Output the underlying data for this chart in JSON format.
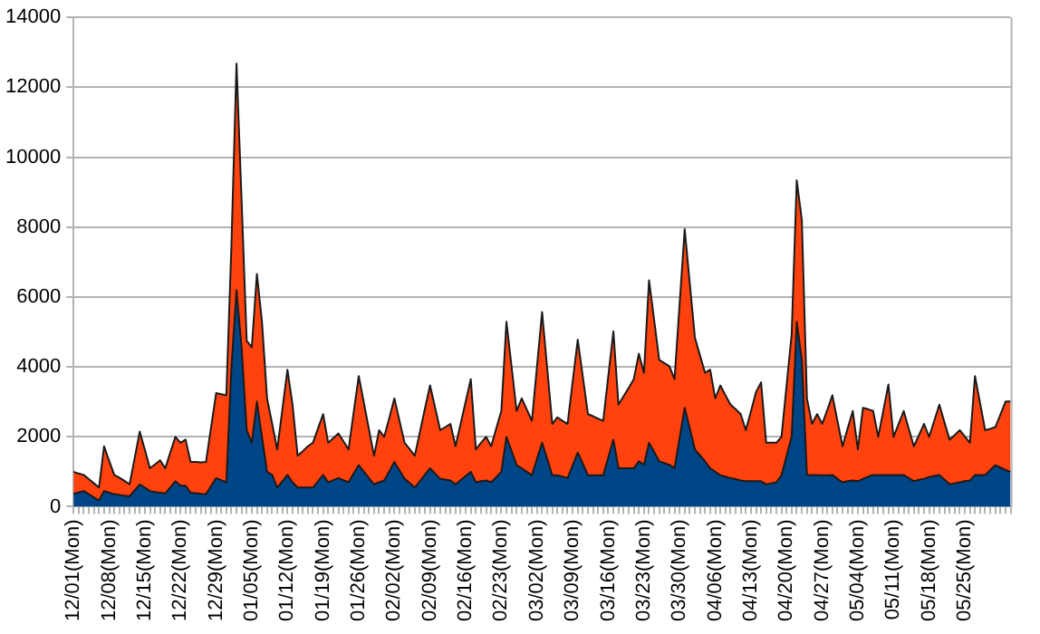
{
  "chart_data": {
    "type": "area",
    "stacked": true,
    "grid": "y",
    "categories": [
      "12/01(Mon)",
      null,
      null,
      null,
      null,
      null,
      null,
      "12/08(Mon)",
      null,
      null,
      null,
      null,
      null,
      null,
      "12/15(Mon)",
      null,
      null,
      null,
      null,
      null,
      null,
      "12/22(Mon)",
      null,
      null,
      null,
      null,
      null,
      null,
      "12/29(Mon)",
      null,
      null,
      null,
      null,
      null,
      null,
      "01/05(Mon)",
      null,
      null,
      null,
      null,
      null,
      null,
      "01/12(Mon)",
      null,
      null,
      null,
      null,
      null,
      null,
      "01/19(Mon)",
      null,
      null,
      null,
      null,
      null,
      null,
      "01/26(Mon)",
      null,
      null,
      null,
      null,
      null,
      null,
      "02/02(Mon)",
      null,
      null,
      null,
      null,
      null,
      null,
      "02/09(Mon)",
      null,
      null,
      null,
      null,
      null,
      null,
      "02/16(Mon)",
      null,
      null,
      null,
      null,
      null,
      null,
      "02/23(Mon)",
      null,
      null,
      null,
      null,
      null,
      null,
      "03/02(Mon)",
      null,
      null,
      null,
      null,
      null,
      null,
      "03/09(Mon)",
      null,
      null,
      null,
      null,
      null,
      null,
      "03/16(Mon)",
      null,
      null,
      null,
      null,
      null,
      null,
      "03/23(Mon)",
      null,
      null,
      null,
      null,
      null,
      null,
      "03/30(Mon)",
      null,
      null,
      null,
      null,
      null,
      null,
      "04/06(Mon)",
      null,
      null,
      null,
      null,
      null,
      null,
      "04/13(Mon)",
      null,
      null,
      null,
      null,
      null,
      null,
      "04/20(Mon)",
      null,
      null,
      null,
      null,
      null,
      null,
      "04/27(Mon)",
      null,
      null,
      null,
      null,
      null,
      null,
      "05/04(Mon)",
      null,
      null,
      null,
      null,
      null,
      null,
      "05/11(Mon)",
      null,
      null,
      null,
      null,
      null,
      null,
      "05/18(Mon)",
      null,
      null,
      null,
      null,
      null,
      null,
      "05/25(Mon)",
      null,
      null,
      null,
      null,
      null,
      null,
      null,
      null,
      null
    ],
    "series": [
      {
        "color": "#004586",
        "values": [
          370,
          410,
          450,
          360,
          270,
          180,
          450,
          400,
          360,
          340,
          320,
          300,
          470,
          640,
          550,
          450,
          420,
          400,
          380,
          550,
          730,
          600,
          600,
          400,
          390,
          370,
          360,
          590,
          820,
          760,
          700,
          4000,
          6200,
          4560,
          2190,
          1830,
          3010,
          2000,
          1000,
          910,
          550,
          730,
          910,
          700,
          550,
          550,
          550,
          550,
          730,
          910,
          700,
          760,
          820,
          760,
          700,
          950,
          1190,
          1010,
          820,
          640,
          700,
          750,
          1010,
          1280,
          1040,
          800,
          680,
          550,
          730,
          920,
          1100,
          950,
          800,
          780,
          750,
          640,
          760,
          880,
          1000,
          700,
          730,
          750,
          700,
          850,
          1000,
          2000,
          1600,
          1190,
          1100,
          1000,
          900,
          1370,
          1830,
          1370,
          900,
          900,
          860,
          820,
          1190,
          1550,
          1230,
          900,
          900,
          900,
          900,
          1410,
          1920,
          1100,
          1100,
          1100,
          1100,
          1300,
          1200,
          1830,
          1570,
          1300,
          1250,
          1200,
          1100,
          1970,
          2830,
          2240,
          1640,
          1470,
          1300,
          1100,
          1000,
          900,
          860,
          820,
          790,
          750,
          730,
          730,
          730,
          730,
          640,
          670,
          700,
          900,
          1450,
          2000,
          5290,
          4200,
          910,
          910,
          910,
          900,
          900,
          910,
          800,
          700,
          730,
          750,
          730,
          800,
          860,
          910,
          910,
          910,
          910,
          910,
          910,
          910,
          820,
          730,
          770,
          800,
          850,
          880,
          910,
          780,
          640,
          670,
          700,
          730,
          750,
          910,
          910,
          910,
          1050,
          1190,
          1120,
          1050,
          1000
        ]
      },
      {
        "color": "#ff420e",
        "values": [
          630,
          540,
          460,
          430,
          400,
          370,
          1280,
          910,
          550,
          490,
          420,
          340,
          920,
          1510,
          1080,
          650,
          790,
          930,
          720,
          1000,
          1270,
          1230,
          1320,
          880,
          890,
          900,
          920,
          1680,
          2430,
          2460,
          2490,
          3480,
          6480,
          4200,
          2560,
          2730,
          3650,
          3290,
          2100,
          1460,
          1090,
          2050,
          3010,
          2220,
          910,
          1040,
          1180,
          1280,
          1510,
          1740,
          1130,
          1200,
          1280,
          1110,
          940,
          1750,
          2550,
          1970,
          1400,
          820,
          1490,
          1250,
          1530,
          1820,
          1420,
          1030,
          970,
          910,
          1400,
          1890,
          2370,
          1880,
          1390,
          1500,
          1620,
          1090,
          1610,
          2130,
          2650,
          940,
          1100,
          1250,
          1030,
          1390,
          1740,
          3290,
          2420,
          1550,
          2000,
          1780,
          1560,
          2650,
          3740,
          2600,
          1470,
          1660,
          1600,
          1550,
          2390,
          3230,
          2490,
          1750,
          1690,
          1620,
          1560,
          2330,
          3100,
          1820,
          2060,
          2300,
          2550,
          3080,
          2630,
          4650,
          3780,
          2900,
          2860,
          2820,
          2550,
          3830,
          5110,
          4150,
          3200,
          2860,
          2530,
          2820,
          2100,
          2570,
          2330,
          2100,
          2000,
          1900,
          1460,
          2000,
          2550,
          2830,
          1190,
          1160,
          1130,
          1100,
          2010,
          2930,
          4050,
          4010,
          2190,
          1460,
          1740,
          1470,
          1870,
          2280,
          1650,
          1030,
          1510,
          1990,
          910,
          2030,
          1930,
          1830,
          1090,
          1840,
          2590,
          1090,
          1460,
          1830,
          1410,
          1000,
          1280,
          1570,
          1150,
          1580,
          2010,
          1640,
          1280,
          1380,
          1490,
          1280,
          1080,
          2830,
          2050,
          1280,
          1180,
          1090,
          1520,
          1960,
          2010
        ]
      }
    ],
    "ylim": [
      0,
      14000
    ],
    "yticks": [
      0,
      2000,
      4000,
      6000,
      8000,
      10000,
      12000,
      14000
    ]
  }
}
